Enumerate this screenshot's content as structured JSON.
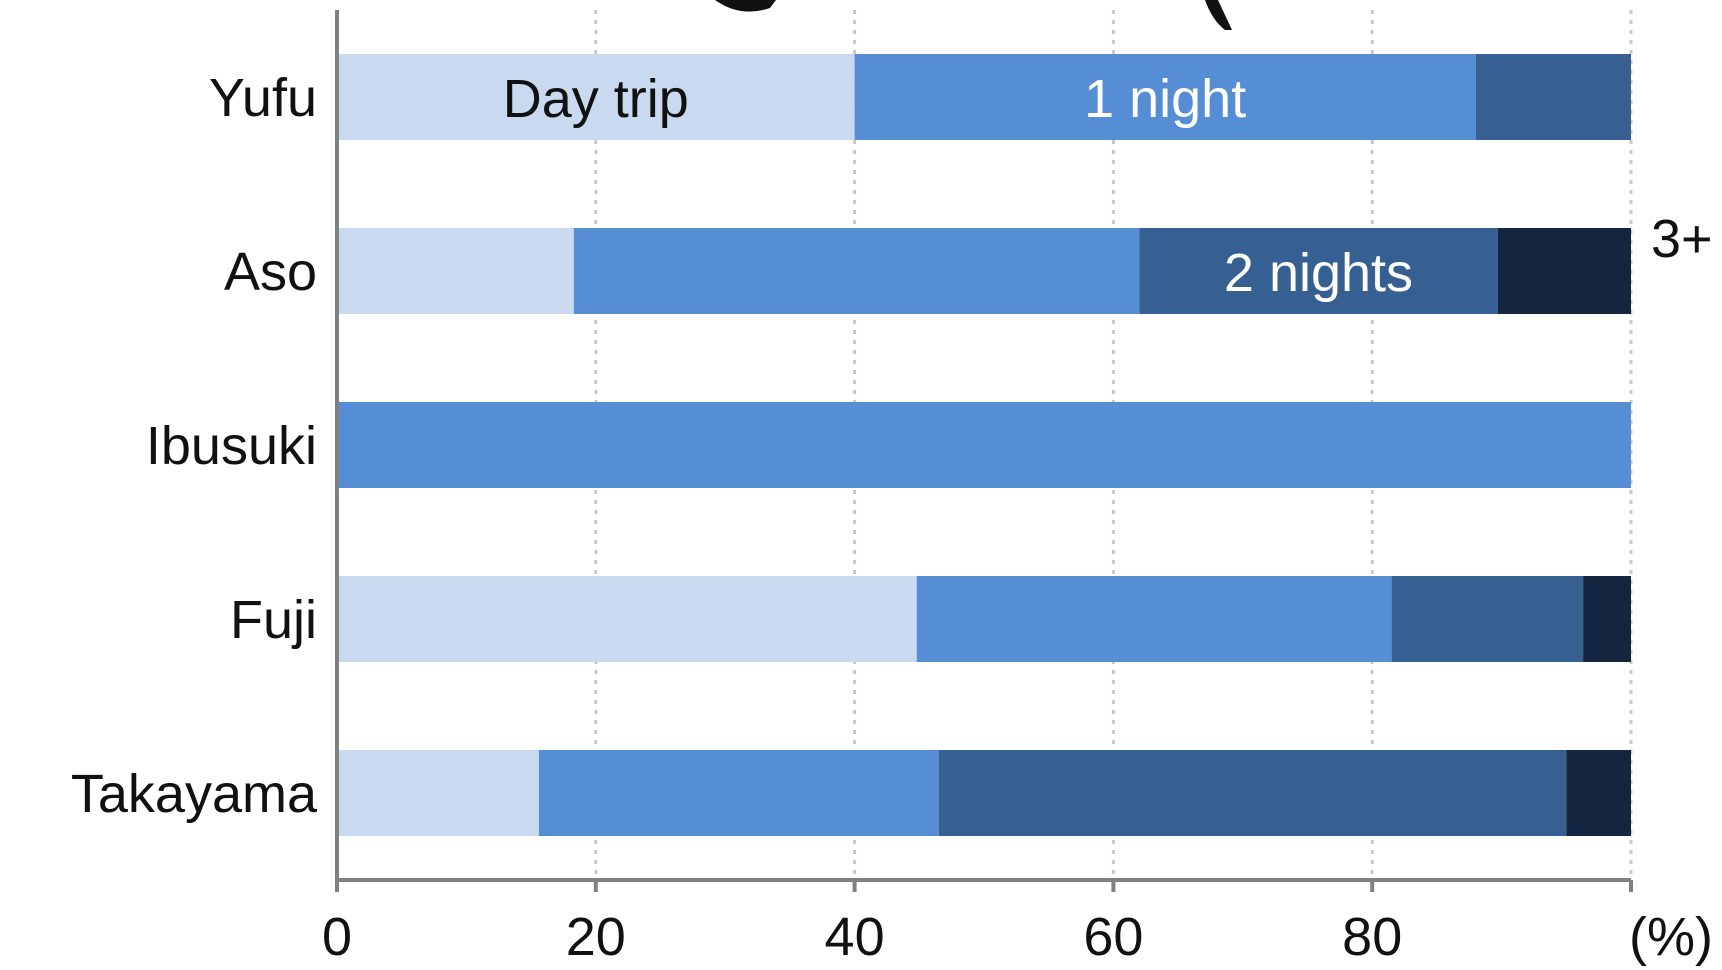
{
  "chart_data": {
    "type": "bar",
    "orientation": "horizontal",
    "stacked": true,
    "categories": [
      "Yufu",
      "Aso",
      "Ibusuki",
      "Fuji",
      "Takayama"
    ],
    "series": [
      {
        "name": "Day trip",
        "color": "#c8d9f0",
        "label_color": "#111111",
        "values": [
          40,
          18.3,
          0,
          44.8,
          15.6
        ]
      },
      {
        "name": "1 night",
        "color": "#558ed5",
        "label_color": "#ffffff",
        "values": [
          48,
          43.7,
          100,
          36.7,
          30.9
        ]
      },
      {
        "name": "2 nights",
        "color": "#376092",
        "label_color": "#ffffff",
        "values": [
          12,
          27.7,
          0,
          14.8,
          48.5
        ]
      },
      {
        "name": "3+",
        "color": "#14253f",
        "label_color": "#111111",
        "values": [
          0,
          10.3,
          0,
          3.7,
          5.0
        ]
      }
    ],
    "series_label_row": [
      0,
      0,
      1,
      null
    ],
    "x_ticks": [
      0,
      20,
      40,
      60,
      80
    ],
    "xlim": [
      0,
      100
    ],
    "x_unit_label": "(%)",
    "grid": "vertical-dotted",
    "title": ""
  }
}
